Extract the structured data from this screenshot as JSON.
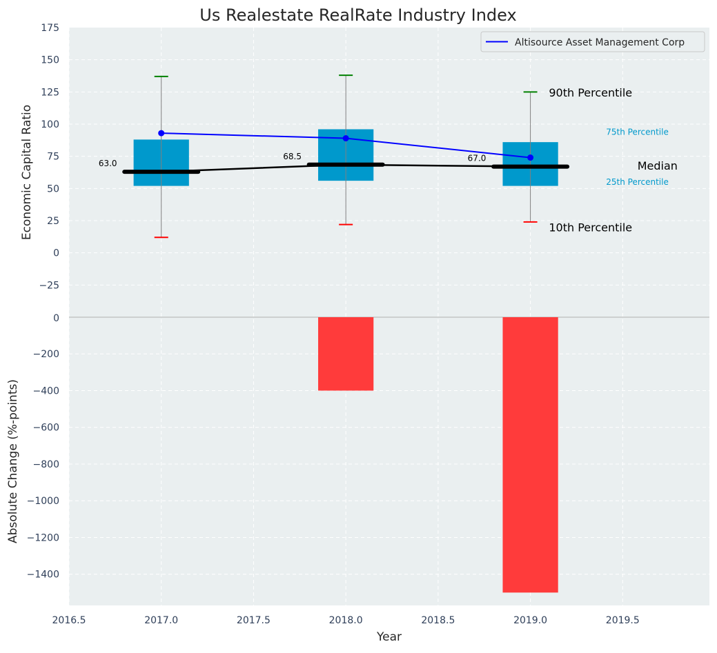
{
  "chart_data": [
    {
      "type": "box",
      "title": "Us Realestate RealRate Industry Index",
      "ylabel": "Economic Capital Ratio",
      "ylim": [
        -50,
        175
      ],
      "xlim": [
        2016.5,
        2019.97
      ],
      "x_ticks": [
        2016.5,
        2017.0,
        2017.5,
        2018.0,
        2018.5,
        2019.0,
        2019.5
      ],
      "x_tick_labels": [
        "2016.5",
        "2017.0",
        "2017.5",
        "2018.0",
        "2018.5",
        "2019.0",
        "2019.5"
      ],
      "y_ticks": [
        175,
        150,
        125,
        100,
        75,
        50,
        25,
        0,
        -25
      ],
      "y_tick_labels": [
        "175",
        "150",
        "125",
        "100",
        "75",
        "50",
        "25",
        "0",
        "−25"
      ],
      "grid": true,
      "years": [
        2017,
        2018,
        2019
      ],
      "p10": [
        12,
        22,
        24
      ],
      "p25": [
        52,
        56,
        52
      ],
      "median": [
        63.0,
        68.5,
        67.0
      ],
      "median_labels": [
        "63.0",
        "68.5",
        "67.0"
      ],
      "p75": [
        88,
        96,
        86
      ],
      "p90": [
        137,
        138,
        125
      ],
      "series": [
        {
          "name": "Altisource Asset Management Corp",
          "x": [
            2017,
            2018,
            2019
          ],
          "values": [
            93,
            89,
            74
          ],
          "color": "#0000ff"
        }
      ],
      "legend": {
        "position": "top-right",
        "entries": [
          "Altisource Asset Management Corp"
        ]
      },
      "annotations": {
        "p90": "90th Percentile",
        "p75": "75th Percentile",
        "median": "Median",
        "p25": "25th Percentile",
        "p10": "10th Percentile"
      },
      "colors": {
        "box": "#0099cc",
        "median": "#000000",
        "p90_cap": "#008000",
        "p10_cap": "#ff0000",
        "whisker": "#808080",
        "background": "#eaeff0"
      }
    },
    {
      "type": "bar",
      "ylabel": "Absolute Change (%-points)",
      "xlabel": "Year",
      "x": [
        2018,
        2019
      ],
      "values": [
        -400,
        -1500
      ],
      "ylim": [
        -1570,
        0
      ],
      "y_ticks": [
        0,
        -200,
        -400,
        -600,
        -800,
        -1000,
        -1200,
        -1400
      ],
      "y_tick_labels": [
        "0",
        "−200",
        "−400",
        "−600",
        "−800",
        "−1000",
        "−1200",
        "−1400"
      ],
      "grid": true,
      "colors": {
        "bar": "#ff3b3b"
      }
    }
  ]
}
